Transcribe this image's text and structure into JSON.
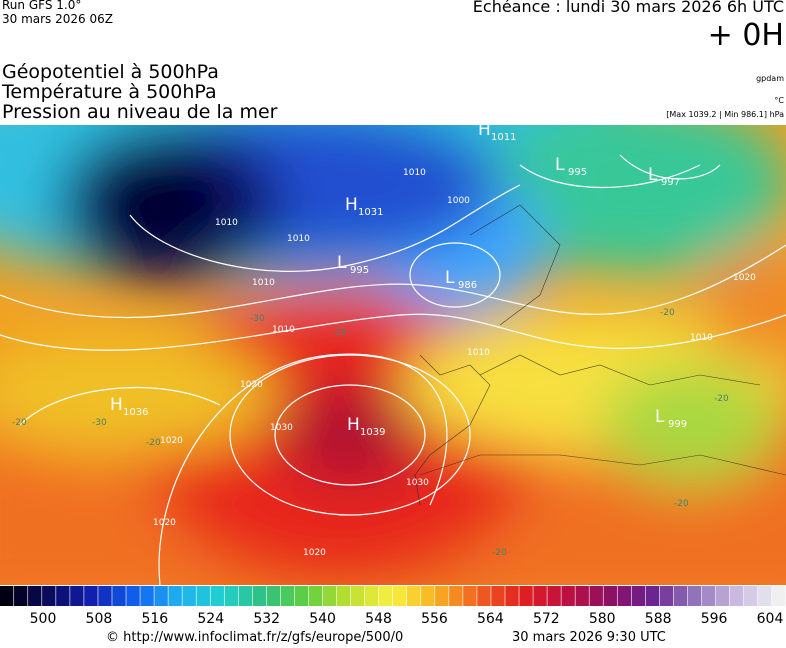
{
  "header": {
    "run": "Run GFS 1.0°",
    "run_date": "30 mars 2026 06Z",
    "echeance": "Echéance : lundi 30 mars 2026 6h UTC",
    "offset": "+ 0H",
    "layers": [
      "Géopotentiel à 500hPa",
      "Température à 500hPa",
      "Pression au niveau de la mer"
    ],
    "unit_geopotential": "gpdam",
    "unit_temperature": "°C",
    "pressure_range": "[Max 1039.2 | Min 986.1] hPa"
  },
  "map": {
    "centers": [
      {
        "kind": "H",
        "value": "1011"
      },
      {
        "kind": "L",
        "value": "995"
      },
      {
        "kind": "L",
        "value": "997"
      },
      {
        "kind": "H",
        "value": "1031"
      },
      {
        "kind": "L",
        "value": "995"
      },
      {
        "kind": "L",
        "value": "986"
      },
      {
        "kind": "H",
        "value": "1036"
      },
      {
        "kind": "H",
        "value": "1039"
      },
      {
        "kind": "L",
        "value": "999"
      }
    ],
    "isobar_labels": [
      "1010",
      "1010",
      "1010",
      "1010",
      "1000",
      "1010",
      "1010",
      "1010",
      "1020",
      "1030",
      "1020",
      "1020",
      "1020",
      "1030",
      "1020"
    ],
    "temperature_labels": [
      "-30",
      "-20",
      "-30",
      "-20",
      "-20",
      "-20",
      "-20",
      "-20",
      "-20"
    ]
  },
  "colorbar": {
    "ticks": [
      "500",
      "508",
      "516",
      "524",
      "532",
      "540",
      "548",
      "556",
      "564",
      "572",
      "580",
      "588",
      "596",
      "604"
    ]
  },
  "footer": {
    "source": "© http://www.infoclimat.fr/z/gfs/europe/500/0",
    "timestamp": "30 mars 2026  9:30 UTC"
  }
}
